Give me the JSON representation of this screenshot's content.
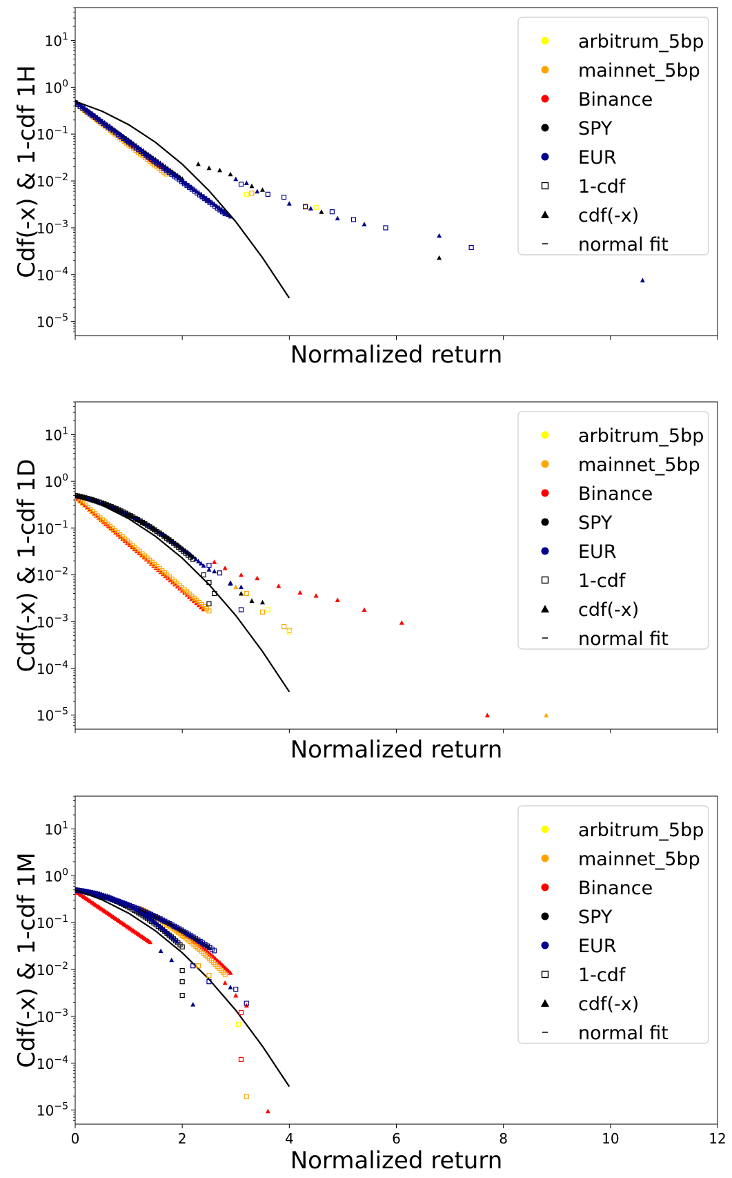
{
  "chart_data": [
    {
      "type": "scatter",
      "ylabel": "Cdf(-x) & 1-cdf 1H",
      "xlabel": "Normalized return",
      "xlim": [
        0,
        12
      ],
      "ylim_log10": [
        -5.3,
        1.7
      ],
      "yscale": "log",
      "x_ticklabels_visible": false,
      "legend_position": "top-right",
      "colors": {
        "arbitrum_5bp": "#ffff00",
        "mainnet_5bp": "#ffa500",
        "Binance": "#ff0000",
        "SPY": "#000000",
        "EUR": "#00008b"
      },
      "normal_fit": {
        "x": [
          0,
          0.5,
          1,
          1.5,
          2,
          2.5,
          3,
          3.5,
          4
        ],
        "y": [
          0.5,
          0.3085,
          0.1587,
          0.0668,
          0.0228,
          0.0062,
          0.00135,
          0.00023,
          3.17e-05
        ]
      },
      "series": [
        {
          "name": "arbitrum_5bp",
          "marker": "1-cdf",
          "points": [
            [
              3.2,
              0.0052
            ],
            [
              4.5,
              0.0027
            ]
          ]
        },
        {
          "name": "mainnet_5bp",
          "marker": "1-cdf",
          "points": [
            [
              3.3,
              0.0055
            ],
            [
              4.3,
              0.0029
            ]
          ]
        },
        {
          "name": "SPY",
          "marker": "cdf(-x)",
          "points": [
            [
              2.3,
              0.023
            ],
            [
              2.5,
              0.019
            ],
            [
              2.7,
              0.017
            ],
            [
              2.9,
              0.014
            ],
            [
              3.3,
              0.0078
            ],
            [
              3.5,
              0.0065
            ],
            [
              4.6,
              0.0022
            ],
            [
              6.8,
              0.00023
            ]
          ]
        },
        {
          "name": "EUR",
          "marker": "cdf(-x)",
          "points": [
            [
              3.0,
              0.011
            ],
            [
              3.2,
              0.0091
            ],
            [
              3.4,
              0.006
            ],
            [
              4.0,
              0.0033
            ],
            [
              4.4,
              0.0026
            ],
            [
              4.9,
              0.0016
            ],
            [
              5.4,
              0.0012
            ],
            [
              6.8,
              0.00068
            ],
            [
              10.6,
              7.6e-05
            ]
          ]
        },
        {
          "name": "EUR",
          "marker": "1-cdf",
          "points": [
            [
              3.1,
              0.0085
            ],
            [
              3.6,
              0.0052
            ],
            [
              3.9,
              0.0045
            ],
            [
              4.3,
              0.0028
            ],
            [
              4.8,
              0.0022
            ],
            [
              5.2,
              0.0015
            ],
            [
              5.8,
              0.001
            ],
            [
              7.4,
              0.00038
            ]
          ]
        }
      ]
    },
    {
      "type": "scatter",
      "ylabel": "Cdf(-x) & 1-cdf 1D",
      "xlabel": "Normalized return",
      "xlim": [
        0,
        12
      ],
      "ylim_log10": [
        -5.3,
        1.7
      ],
      "yscale": "log",
      "x_ticklabels_visible": false,
      "legend_position": "top-right",
      "colors": {
        "arbitrum_5bp": "#ffff00",
        "mainnet_5bp": "#ffa500",
        "Binance": "#ff0000",
        "SPY": "#000000",
        "EUR": "#00008b"
      },
      "normal_fit": {
        "x": [
          0,
          0.5,
          1,
          1.5,
          2,
          2.5,
          3,
          3.5,
          4
        ],
        "y": [
          0.5,
          0.3085,
          0.1587,
          0.0668,
          0.0228,
          0.0062,
          0.00135,
          0.00023,
          3.17e-05
        ]
      },
      "series": [
        {
          "name": "Binance",
          "marker": "cdf(-x)",
          "points": [
            [
              2.6,
              0.019
            ],
            [
              2.8,
              0.014
            ],
            [
              3.1,
              0.01
            ],
            [
              3.4,
              0.0085
            ],
            [
              3.8,
              0.0058
            ],
            [
              4.2,
              0.0042
            ],
            [
              4.5,
              0.0036
            ],
            [
              4.9,
              0.0029
            ],
            [
              5.4,
              0.0018
            ],
            [
              6.1,
              0.00095
            ],
            [
              7.7,
              1e-05
            ]
          ]
        },
        {
          "name": "mainnet_5bp",
          "marker": "cdf(-x)",
          "points": [
            [
              3.0,
              0.0055
            ],
            [
              8.8,
              1e-05
            ]
          ]
        },
        {
          "name": "mainnet_5bp",
          "marker": "1-cdf",
          "points": [
            [
              3.2,
              0.004
            ],
            [
              3.5,
              0.0016
            ],
            [
              3.9,
              0.00078
            ],
            [
              4.0,
              0.00065
            ]
          ]
        },
        {
          "name": "arbitrum_5bp",
          "marker": "1-cdf",
          "points": [
            [
              3.6,
              0.0018
            ],
            [
              4.0,
              0.0006
            ]
          ]
        },
        {
          "name": "SPY",
          "marker": "1-cdf",
          "points": [
            [
              2.4,
              0.01
            ],
            [
              2.5,
              0.0069
            ],
            [
              2.6,
              0.004
            ],
            [
              2.5,
              0.0024
            ]
          ]
        },
        {
          "name": "SPY",
          "marker": "cdf(-x)",
          "points": [
            [
              2.9,
              0.0068
            ],
            [
              3.1,
              0.004
            ],
            [
              3.3,
              0.0028
            ],
            [
              3.5,
              0.0026
            ]
          ]
        },
        {
          "name": "EUR",
          "marker": "cdf(-x)",
          "points": [
            [
              2.5,
              0.013
            ],
            [
              2.6,
              0.012
            ],
            [
              2.9,
              0.0065
            ],
            [
              3.1,
              0.0055
            ]
          ]
        },
        {
          "name": "EUR",
          "marker": "1-cdf",
          "points": [
            [
              2.5,
              0.016
            ],
            [
              2.7,
              0.011
            ],
            [
              3.1,
              0.0018
            ]
          ]
        }
      ]
    },
    {
      "type": "scatter",
      "ylabel": "Cdf(-x) & 1-cdf 1M",
      "xlabel": "Normalized return",
      "xlim": [
        0,
        12
      ],
      "xticks": [
        0,
        2,
        4,
        6,
        8,
        10,
        12
      ],
      "ylim_log10": [
        -5.3,
        1.7
      ],
      "yscale": "log",
      "x_ticklabels_visible": true,
      "legend_position": "top-right",
      "colors": {
        "arbitrum_5bp": "#ffff00",
        "mainnet_5bp": "#ffa500",
        "Binance": "#ff0000",
        "SPY": "#000000",
        "EUR": "#00008b"
      },
      "normal_fit": {
        "x": [
          0,
          0.5,
          1,
          1.5,
          2,
          2.5,
          3,
          3.5,
          4
        ],
        "y": [
          0.5,
          0.3085,
          0.1587,
          0.0668,
          0.0228,
          0.0062,
          0.00135,
          0.00023,
          3.17e-05
        ]
      },
      "series": [
        {
          "name": "Binance",
          "marker": "cdf(-x)",
          "points": [
            [
              2.8,
              0.0052
            ],
            [
              3.0,
              0.0028
            ],
            [
              3.2,
              0.0017
            ],
            [
              3.6,
              9.5e-06
            ]
          ]
        },
        {
          "name": "mainnet_5bp",
          "marker": "1-cdf",
          "points": [
            [
              2.3,
              0.012
            ],
            [
              2.5,
              0.0075
            ],
            [
              3.1,
              0.00012
            ],
            [
              3.2,
              1.95e-05
            ]
          ]
        },
        {
          "name": "arbitrum_5bp",
          "marker": "1-cdf",
          "points": [
            [
              3.05,
              0.00068
            ]
          ]
        },
        {
          "name": "Binance",
          "marker": "1-cdf",
          "points": [
            [
              3.1,
              0.0012
            ],
            [
              3.1,
              0.00012
            ]
          ]
        },
        {
          "name": "SPY",
          "marker": "1-cdf",
          "points": [
            [
              2.0,
              0.0095
            ],
            [
              2.0,
              0.0055
            ],
            [
              2.0,
              0.0028
            ]
          ]
        },
        {
          "name": "EUR",
          "marker": "cdf(-x)",
          "points": [
            [
              1.6,
              0.025
            ],
            [
              1.8,
              0.016
            ],
            [
              2.2,
              0.0018
            ],
            [
              2.9,
              0.0042
            ]
          ]
        },
        {
          "name": "EUR",
          "marker": "1-cdf",
          "points": [
            [
              2.2,
              0.012
            ],
            [
              2.5,
              0.0055
            ],
            [
              3.0,
              0.0038
            ],
            [
              3.2,
              0.0019
            ]
          ]
        }
      ]
    }
  ],
  "legend": {
    "entries": [
      {
        "label": "arbitrum_5bp",
        "marker": "dot",
        "color": "#ffff00"
      },
      {
        "label": "mainnet_5bp",
        "marker": "dot",
        "color": "#ffa500"
      },
      {
        "label": "Binance",
        "marker": "dot",
        "color": "#ff0000"
      },
      {
        "label": "SPY",
        "marker": "dot",
        "color": "#000000"
      },
      {
        "label": "EUR",
        "marker": "dot",
        "color": "#00008b"
      },
      {
        "label": "1-cdf",
        "marker": "square",
        "color": "#000000"
      },
      {
        "label": "cdf(-x)",
        "marker": "triangle",
        "color": "#000000"
      },
      {
        "label": "normal fit",
        "marker": "dash",
        "color": "#000000"
      }
    ]
  },
  "y_tick_labels": [
    {
      "base": "10",
      "exp": "1"
    },
    {
      "base": "10",
      "exp": "0"
    },
    {
      "base": "10",
      "exp": "−1"
    },
    {
      "base": "10",
      "exp": "−2"
    },
    {
      "base": "10",
      "exp": "−3"
    },
    {
      "base": "10",
      "exp": "−4"
    },
    {
      "base": "10",
      "exp": "−5"
    }
  ]
}
